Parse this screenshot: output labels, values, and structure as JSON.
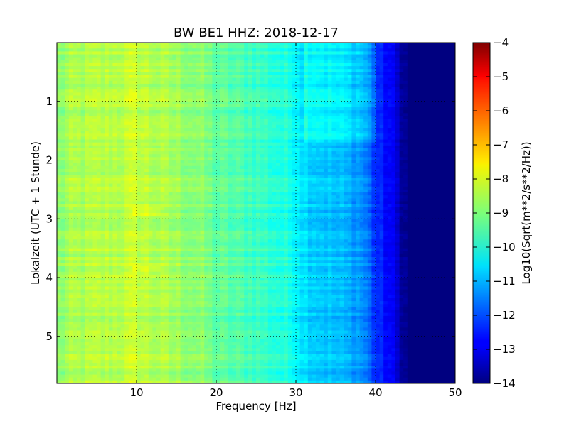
{
  "chart_data": {
    "type": "heatmap",
    "title": "BW BE1 HHZ: 2018-12-17",
    "xlabel": "Frequency [Hz]",
    "ylabel": "Lokalzeit (UTC + 1 Stunde)",
    "xlim": [
      0,
      50
    ],
    "ylim": [
      5.8,
      0
    ],
    "x_ticks": [
      10,
      20,
      30,
      40,
      50
    ],
    "y_ticks": [
      1,
      2,
      3,
      4,
      5
    ],
    "grid": true,
    "colormap": "jet",
    "colorbar": {
      "label": "Log10(Sqrt(m**2/s**2/Hz))",
      "range": [
        -14,
        -4
      ],
      "ticks": [
        -14,
        -13,
        -12,
        -11,
        -10,
        -9,
        -8,
        -7,
        -6,
        -5,
        -4
      ]
    },
    "profile": {
      "frequency_hz": [
        0,
        2,
        5,
        8,
        10,
        12,
        15,
        18,
        20,
        25,
        28,
        30,
        31,
        33,
        35,
        36,
        38,
        39,
        40,
        42,
        43,
        44,
        50
      ],
      "log10_amplitude": [
        -8.9,
        -8.6,
        -8.5,
        -8.4,
        -8.3,
        -8.5,
        -8.7,
        -8.9,
        -9.3,
        -9.6,
        -9.9,
        -10.1,
        -10.5,
        -10.7,
        -10.9,
        -11.0,
        -11.2,
        -11.6,
        -12.3,
        -12.8,
        -13.4,
        -14,
        -14
      ]
    },
    "features": [
      {
        "type": "band",
        "f_min": 31,
        "f_max": 40,
        "t_start": 0,
        "t_end": 1.7,
        "offset": 0.5
      },
      {
        "type": "band",
        "f_min": 9.5,
        "f_max": 13,
        "t_start": 2.8,
        "t_end": 2.95,
        "offset": 0.4
      },
      {
        "type": "band",
        "f_min": 9.5,
        "f_max": 13,
        "t_start": 3.8,
        "t_end": 3.9,
        "offset": 0.4
      }
    ]
  }
}
